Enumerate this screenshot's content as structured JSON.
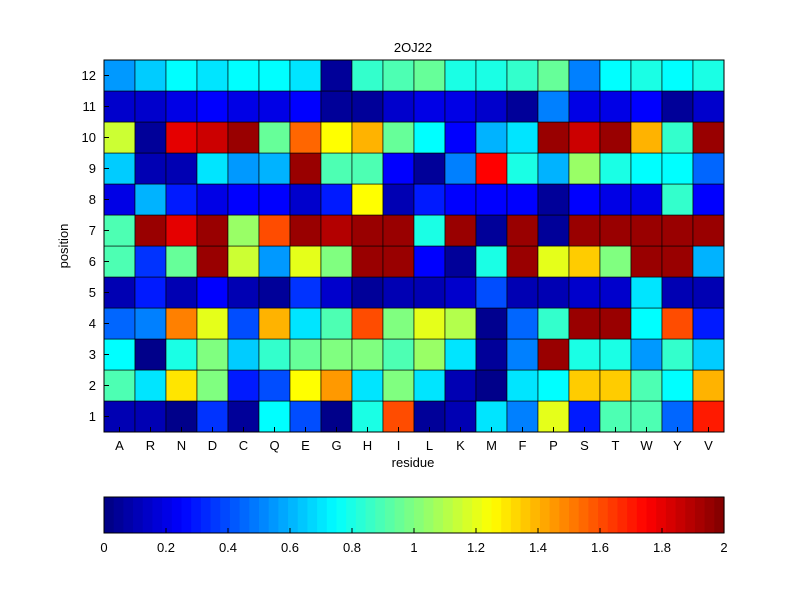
{
  "chart_data": {
    "type": "heatmap",
    "title": "2OJ22",
    "xlabel": "residue",
    "ylabel": "position",
    "x_categories": [
      "A",
      "R",
      "N",
      "D",
      "C",
      "Q",
      "E",
      "G",
      "H",
      "I",
      "L",
      "K",
      "M",
      "F",
      "P",
      "S",
      "T",
      "W",
      "Y",
      "V"
    ],
    "y_categories": [
      "1",
      "2",
      "3",
      "4",
      "5",
      "6",
      "7",
      "8",
      "9",
      "10",
      "11",
      "12"
    ],
    "values": [
      [
        0.1,
        0.1,
        0.02,
        0.35,
        0.05,
        0.75,
        0.4,
        0.02,
        0.8,
        1.6,
        0.05,
        0.1,
        0.7,
        0.5,
        1.2,
        0.3,
        0.9,
        0.9,
        0.45,
        1.7
      ],
      [
        0.9,
        0.7,
        1.3,
        1.0,
        0.3,
        0.4,
        1.25,
        1.45,
        0.7,
        1.0,
        0.7,
        0.1,
        0.02,
        0.7,
        0.75,
        1.35,
        1.35,
        0.9,
        0.75,
        1.4
      ],
      [
        0.75,
        0.02,
        0.8,
        1.0,
        0.65,
        0.85,
        0.95,
        1.0,
        1.0,
        0.9,
        1.05,
        0.7,
        0.05,
        0.5,
        1.95,
        0.8,
        0.8,
        0.55,
        0.85,
        0.65
      ],
      [
        0.45,
        0.5,
        1.5,
        1.2,
        0.4,
        1.4,
        0.7,
        0.9,
        1.6,
        1.0,
        1.2,
        1.1,
        0.03,
        0.45,
        0.85,
        1.95,
        1.95,
        0.75,
        1.6,
        0.3
      ],
      [
        0.1,
        0.3,
        0.1,
        0.25,
        0.1,
        0.05,
        0.35,
        0.15,
        0.05,
        0.1,
        0.1,
        0.15,
        0.4,
        0.1,
        0.1,
        0.15,
        0.15,
        0.7,
        0.1,
        0.1
      ],
      [
        0.9,
        0.35,
        0.95,
        1.95,
        1.15,
        0.55,
        1.2,
        1.0,
        1.95,
        1.95,
        0.25,
        0.05,
        0.8,
        1.95,
        1.2,
        1.35,
        1.0,
        1.95,
        1.95,
        0.6
      ],
      [
        0.9,
        1.95,
        1.8,
        1.95,
        1.05,
        1.6,
        1.95,
        1.9,
        1.95,
        1.95,
        0.8,
        1.95,
        0.05,
        1.95,
        0.05,
        1.95,
        1.95,
        1.95,
        1.95,
        1.95
      ],
      [
        0.2,
        0.6,
        0.3,
        0.2,
        0.25,
        0.25,
        0.15,
        0.3,
        1.25,
        0.1,
        0.3,
        0.25,
        0.25,
        0.25,
        0.05,
        0.25,
        0.2,
        0.2,
        0.85,
        0.25
      ],
      [
        0.65,
        0.1,
        0.1,
        0.7,
        0.55,
        0.6,
        1.95,
        0.9,
        0.9,
        0.25,
        0.05,
        0.5,
        1.75,
        0.8,
        0.6,
        1.05,
        0.8,
        0.75,
        0.75,
        0.45
      ],
      [
        1.15,
        0.05,
        1.8,
        1.85,
        1.95,
        0.95,
        1.55,
        1.25,
        1.4,
        0.95,
        0.75,
        0.25,
        0.6,
        0.7,
        1.95,
        1.85,
        1.95,
        1.4,
        0.85,
        1.95
      ],
      [
        0.15,
        0.15,
        0.2,
        0.25,
        0.2,
        0.2,
        0.25,
        0.05,
        0.05,
        0.15,
        0.2,
        0.2,
        0.15,
        0.05,
        0.5,
        0.2,
        0.2,
        0.25,
        0.05,
        0.15
      ],
      [
        0.55,
        0.65,
        0.75,
        0.7,
        0.75,
        0.75,
        0.7,
        0.05,
        0.85,
        0.9,
        0.95,
        0.8,
        0.8,
        0.85,
        0.95,
        0.5,
        0.75,
        0.8,
        0.75,
        0.8
      ]
    ],
    "zlim": [
      0,
      2
    ],
    "colormap": "jet",
    "colorbar": {
      "orientation": "horizontal",
      "location": "bottom",
      "ticks": [
        0,
        0.2,
        0.4,
        0.6,
        0.8,
        1,
        1.2,
        1.4,
        1.6,
        1.8,
        2
      ],
      "tick_labels": [
        "0",
        "0.2",
        "0.4",
        "0.6",
        "0.8",
        "1",
        "1.2",
        "1.4",
        "1.6",
        "1.8",
        "2"
      ]
    },
    "grid": false
  }
}
